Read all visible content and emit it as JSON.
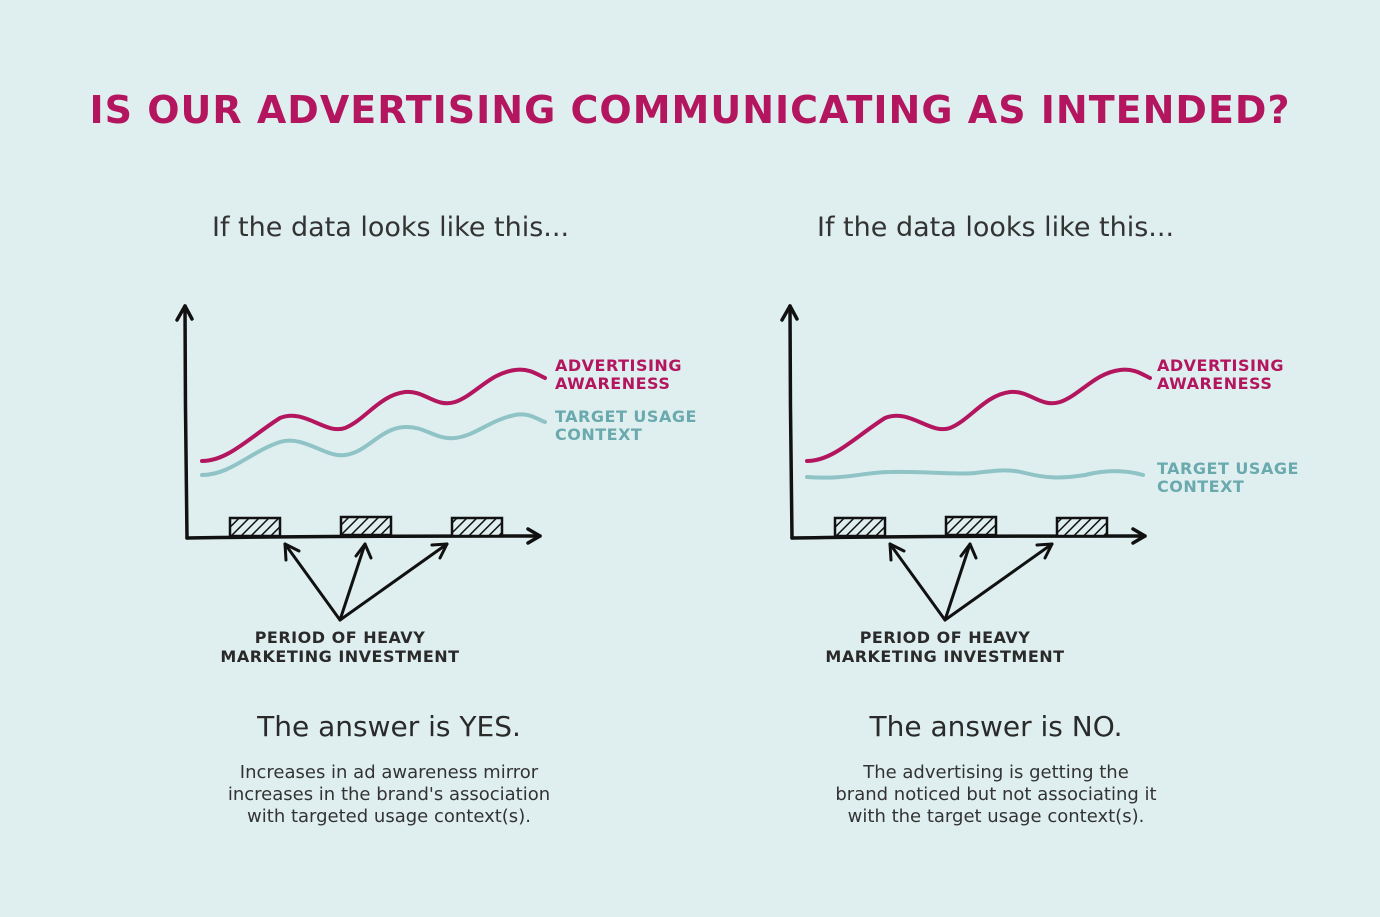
{
  "title": "IS OUR ADVERTISING COMMUNICATING AS INTENDED?",
  "colors": {
    "background": "#dfeff0",
    "title": "#b3165e",
    "awareness": "#b3165e",
    "usage": "#8fc3c6",
    "ink": "#111111"
  },
  "icons": [
    "arrow-up-icon",
    "arrow-right-icon",
    "hatched-block-icon",
    "pointer-arrow-icon"
  ],
  "panels": [
    {
      "intro": "If the data looks like this...",
      "series_awareness": [
        "ADVERTISING",
        "AWARENESS"
      ],
      "series_usage": [
        "TARGET USAGE",
        "CONTEXT"
      ],
      "period_label": [
        "PERIOD OF HEAVY",
        "MARKETING INVESTMENT"
      ],
      "answer": "The answer is YES.",
      "explanation": [
        "Increases in ad awareness mirror",
        "increases in the brand's association",
        "with targeted usage context(s)."
      ]
    },
    {
      "intro": "If the data looks like this...",
      "series_awareness": [
        "ADVERTISING",
        "AWARENESS"
      ],
      "series_usage": [
        "TARGET USAGE",
        "CONTEXT"
      ],
      "period_label": [
        "PERIOD OF HEAVY",
        "MARKETING INVESTMENT"
      ],
      "answer": "The answer is NO.",
      "explanation": [
        "The advertising is getting the",
        "brand noticed but not associating it",
        "with the target usage context(s)."
      ]
    }
  ]
}
